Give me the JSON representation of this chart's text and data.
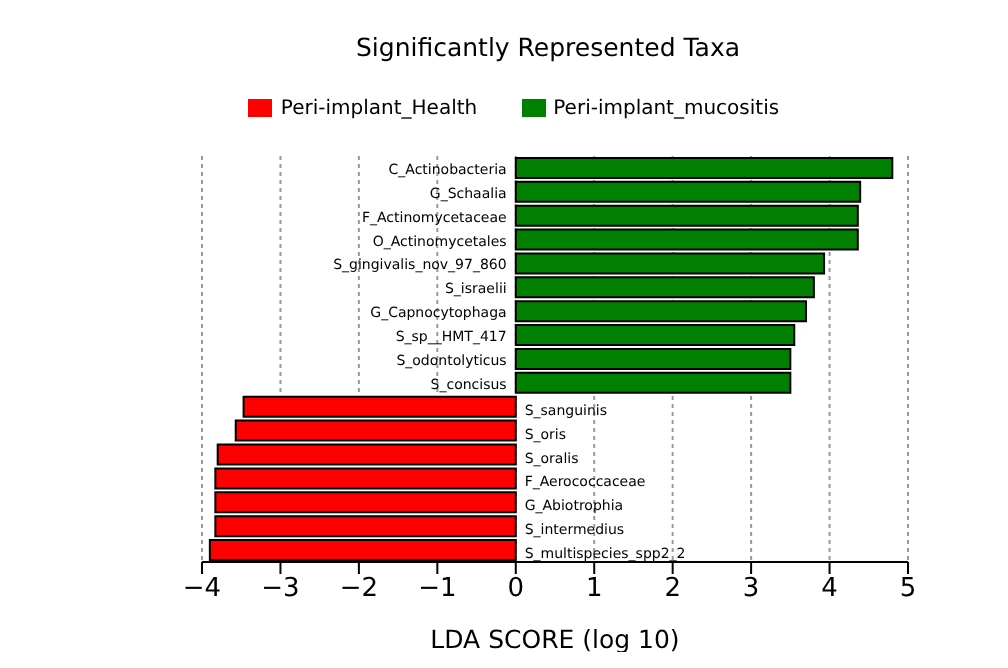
{
  "chart_data": {
    "type": "bar",
    "orientation": "horizontal",
    "title": "Significantly Represented Taxa",
    "xlabel": "LDA SCORE (log 10)",
    "categories": [
      "C_Actinobacteria",
      "G_Schaalia",
      "F_Actinomycetaceae",
      "O_Actinomycetales",
      "S_gingivalis_nov_97_860",
      "S_israelii",
      "G_Capnocytophaga",
      "S_sp__HMT_417",
      "S_odontolyticus",
      "S_concisus",
      "S_sanguinis",
      "S_oris",
      "S_oralis",
      "F_Aerococcaceae",
      "G_Abiotrophia",
      "S_intermedius",
      "S_multispecies_spp2_2"
    ],
    "series": [
      {
        "name": "Peri-implant_Health",
        "color": "#ff0000",
        "values": [
          null,
          null,
          null,
          null,
          null,
          null,
          null,
          null,
          null,
          null,
          -3.47,
          -3.57,
          -3.8,
          -3.83,
          -3.83,
          -3.83,
          -3.9
        ]
      },
      {
        "name": "Peri-implant_mucositis",
        "color": "#008000",
        "values": [
          4.8,
          4.39,
          4.36,
          4.36,
          3.93,
          3.8,
          3.7,
          3.55,
          3.5,
          3.5,
          null,
          null,
          null,
          null,
          null,
          null,
          null
        ]
      }
    ],
    "xlim": [
      -4,
      5
    ],
    "xticks": [
      -4,
      -3,
      -2,
      -1,
      0,
      1,
      2,
      3,
      4,
      5
    ],
    "grid": "x",
    "legend": "top"
  }
}
